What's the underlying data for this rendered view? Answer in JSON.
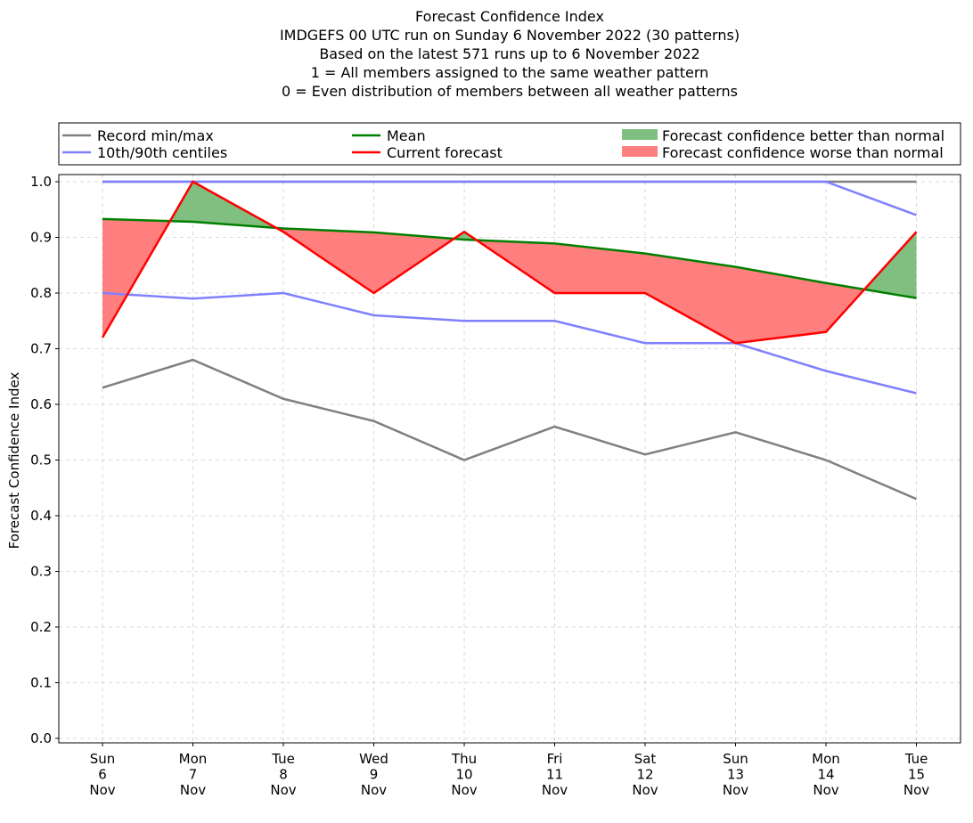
{
  "chart_data": {
    "type": "line",
    "title_lines": [
      "Forecast Confidence Index",
      "IMDGEFS 00 UTC run on Sunday 6 November 2022 (30 patterns)",
      "Based on the latest 571 runs up to 6 November 2022",
      "1 = All members assigned to the same weather pattern",
      "0 = Even distribution of members between all weather patterns"
    ],
    "ylabel": "Forecast Confidence Index",
    "ylim": [
      0,
      1
    ],
    "yticks": [
      "0.0",
      "0.1",
      "0.2",
      "0.3",
      "0.4",
      "0.5",
      "0.6",
      "0.7",
      "0.8",
      "0.9",
      "1.0"
    ],
    "grid": true,
    "legend_position": "top",
    "categories": [
      [
        "Sun",
        "6",
        "Nov"
      ],
      [
        "Mon",
        "7",
        "Nov"
      ],
      [
        "Tue",
        "8",
        "Nov"
      ],
      [
        "Wed",
        "9",
        "Nov"
      ],
      [
        "Thu",
        "10",
        "Nov"
      ],
      [
        "Fri",
        "11",
        "Nov"
      ],
      [
        "Sat",
        "12",
        "Nov"
      ],
      [
        "Sun",
        "13",
        "Nov"
      ],
      [
        "Mon",
        "14",
        "Nov"
      ],
      [
        "Tue",
        "15",
        "Nov"
      ]
    ],
    "series": [
      {
        "name": "Record min/max",
        "role": "record_min",
        "color": "#808080",
        "values": [
          0.63,
          0.68,
          0.61,
          0.57,
          0.5,
          0.56,
          0.51,
          0.55,
          0.5,
          0.43
        ]
      },
      {
        "name": "Record min/max",
        "role": "record_max",
        "color": "#808080",
        "values": [
          1.0,
          1.0,
          1.0,
          1.0,
          1.0,
          1.0,
          1.0,
          1.0,
          1.0,
          1.0
        ]
      },
      {
        "name": "10th/90th centiles",
        "role": "p10",
        "color": "#8080ff",
        "values": [
          0.8,
          0.79,
          0.8,
          0.76,
          0.75,
          0.75,
          0.71,
          0.71,
          0.66,
          0.62
        ]
      },
      {
        "name": "10th/90th centiles",
        "role": "p90",
        "color": "#8080ff",
        "values": [
          1.0,
          1.0,
          1.0,
          1.0,
          1.0,
          1.0,
          1.0,
          1.0,
          1.0,
          0.94
        ]
      },
      {
        "name": "Mean",
        "role": "mean",
        "color": "#008000",
        "values": [
          0.933,
          0.928,
          0.916,
          0.909,
          0.896,
          0.889,
          0.871,
          0.847,
          0.818,
          0.791
        ]
      },
      {
        "name": "Current forecast",
        "role": "current",
        "color": "#ff0000",
        "values": [
          0.72,
          1.0,
          0.91,
          0.8,
          0.91,
          0.8,
          0.8,
          0.71,
          0.73,
          0.91
        ]
      }
    ],
    "legend": [
      {
        "label": "Record min/max",
        "kind": "line",
        "color": "#808080"
      },
      {
        "label": "10th/90th centiles",
        "kind": "line",
        "color": "#8080ff"
      },
      {
        "label": "Mean",
        "kind": "line",
        "color": "#008000"
      },
      {
        "label": "Current forecast",
        "kind": "line",
        "color": "#ff0000"
      },
      {
        "label": "Forecast confidence better than normal",
        "kind": "patch",
        "color": "#7fbf7f"
      },
      {
        "label": "Forecast confidence worse than normal",
        "kind": "patch",
        "color": "#ff7f7f"
      }
    ],
    "fill_colors": {
      "better": "#7fbf7f",
      "worse": "#ff7f7f"
    }
  }
}
